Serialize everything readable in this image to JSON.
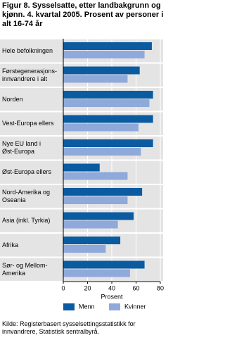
{
  "chart_data": {
    "type": "hbar",
    "title": "Figur 8. Sysselsatte, etter landbakgrunn og kjønn. 4. kvartal 2005. Prosent av personer i alt 16-74 år",
    "categories": [
      "Hele befolkningen",
      "Førstegenerasjons-\ninnvandrere i alt",
      "Norden",
      "Vest-Europa ellers",
      "Nye EU land i\nØst-Europa",
      "Øst-Europa ellers",
      "Nord-Amerika og\nOseania",
      "Asia (inkl. Tyrkia)",
      "Afrika",
      "Sør- og Mellom-\nAmerika"
    ],
    "series": [
      {
        "name": "Menn",
        "color": "#0b5ba0",
        "values": [
          73,
          63,
          74,
          74,
          74,
          30,
          65,
          58,
          47,
          67
        ]
      },
      {
        "name": "Kvinner",
        "color": "#8fa9da",
        "values": [
          67,
          53,
          71,
          62,
          64,
          53,
          53,
          45,
          35,
          55
        ]
      }
    ],
    "xlim": [
      0,
      80
    ],
    "xticks": [
      0,
      20,
      40,
      60,
      80
    ],
    "xlabel": "Prosent",
    "grid": true,
    "source": "Kilde: Registerbasert sysselsettingsstatistikk for innvandrere, Statistisk sentralbyrå."
  }
}
